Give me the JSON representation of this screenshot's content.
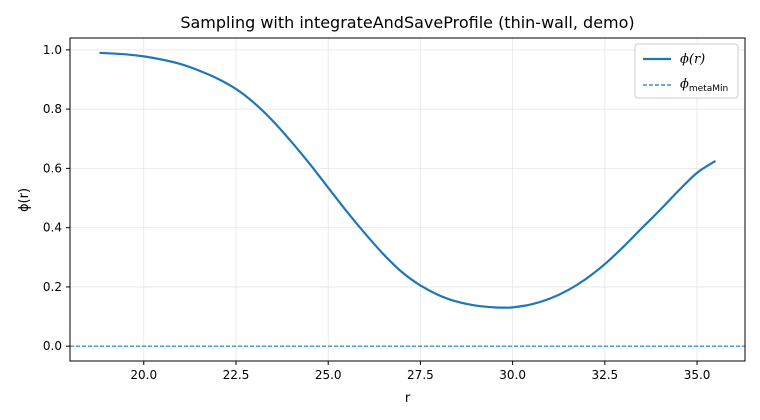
{
  "chart_data": {
    "type": "line",
    "title": "Sampling with integrateAndSaveProfile (thin-wall, demo)",
    "xlabel": "r",
    "ylabel": "ϕ(r)",
    "xlim": [
      18.0,
      36.3
    ],
    "ylim": [
      -0.05,
      1.04
    ],
    "xticks": [
      "20.0",
      "22.5",
      "25.0",
      "27.5",
      "30.0",
      "32.5",
      "35.0"
    ],
    "yticks": [
      "0.0",
      "0.2",
      "0.4",
      "0.6",
      "0.8",
      "1.0"
    ],
    "grid": true,
    "legend_position": "top-right",
    "colors": {
      "series": "#1f77b4"
    },
    "series": [
      {
        "name": "ϕ(r)",
        "style": "solid",
        "x": [
          18.8,
          19.5,
          20.0,
          20.5,
          21.0,
          21.5,
          22.0,
          22.5,
          23.0,
          23.5,
          24.0,
          24.5,
          25.0,
          25.5,
          26.0,
          26.5,
          27.0,
          27.5,
          28.0,
          28.5,
          29.0,
          29.5,
          29.8,
          30.0,
          30.5,
          31.0,
          31.5,
          32.0,
          32.5,
          33.0,
          33.5,
          34.0,
          34.5,
          35.0,
          35.5
        ],
        "y": [
          0.99,
          0.985,
          0.978,
          0.967,
          0.952,
          0.93,
          0.903,
          0.868,
          0.82,
          0.76,
          0.69,
          0.615,
          0.535,
          0.455,
          0.38,
          0.31,
          0.25,
          0.205,
          0.172,
          0.15,
          0.137,
          0.131,
          0.13,
          0.131,
          0.141,
          0.16,
          0.189,
          0.228,
          0.277,
          0.335,
          0.398,
          0.46,
          0.525,
          0.585,
          0.625
        ]
      },
      {
        "name": "ϕ_metaMin",
        "style": "dashed",
        "constant": 0.0
      }
    ]
  },
  "legend": {
    "phi_main": "ϕ",
    "phi_paren": "(r)",
    "meta_main": "ϕ",
    "meta_sub": "metaMin"
  }
}
